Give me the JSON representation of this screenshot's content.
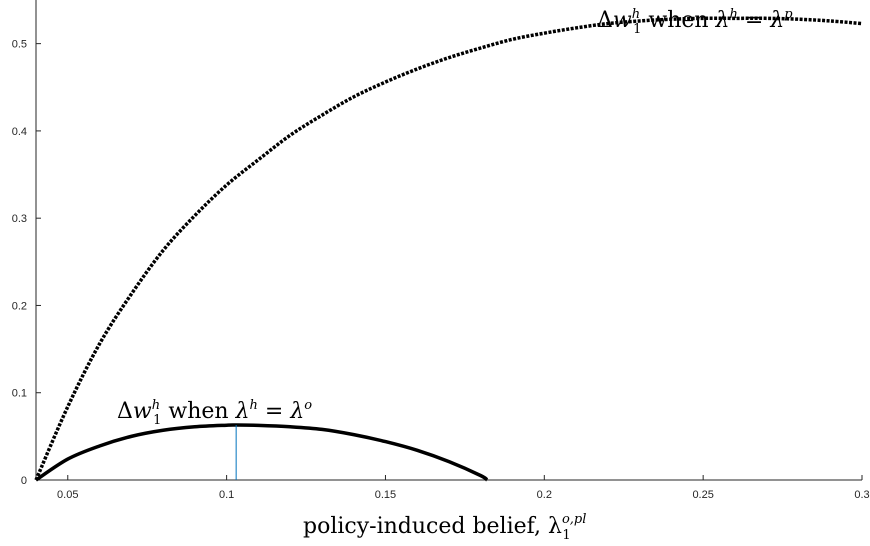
{
  "chart_data": {
    "type": "line",
    "xlabel": "policy-induced belief, λ",
    "xlabel_superscript": "o,pl",
    "xlabel_subscript": "1",
    "xlim": [
      0.04,
      0.3
    ],
    "ylim": [
      0,
      0.55
    ],
    "x_ticks": [
      0.05,
      0.1,
      0.15,
      0.2,
      0.25,
      0.3
    ],
    "x_tick_labels": [
      "0.05",
      "0.1",
      "0.15",
      "0.2",
      "0.25",
      "0.3"
    ],
    "y_ticks": [
      0,
      0.1,
      0.2,
      0.3,
      0.4,
      0.5
    ],
    "y_tick_labels": [
      "0",
      "0.1",
      "0.2",
      "0.3",
      "0.4",
      "0.5"
    ],
    "series": [
      {
        "name": "Δw1h when λh = λp",
        "style": "dashed",
        "color": "#000000",
        "x": [
          0.04,
          0.05,
          0.06,
          0.07,
          0.08,
          0.09,
          0.1,
          0.11,
          0.12,
          0.13,
          0.14,
          0.15,
          0.16,
          0.17,
          0.18,
          0.19,
          0.2,
          0.21,
          0.22,
          0.23,
          0.24,
          0.25,
          0.26,
          0.27,
          0.28,
          0.29,
          0.3
        ],
        "values": [
          0,
          0.084,
          0.156,
          0.213,
          0.263,
          0.303,
          0.338,
          0.367,
          0.395,
          0.418,
          0.439,
          0.456,
          0.471,
          0.484,
          0.495,
          0.505,
          0.512,
          0.518,
          0.523,
          0.526,
          0.528,
          0.529,
          0.529,
          0.529,
          0.528,
          0.526,
          0.523
        ]
      },
      {
        "name": "Δw1h when λh = λo",
        "style": "solid",
        "color": "#000000",
        "x": [
          0.04,
          0.05,
          0.06,
          0.07,
          0.08,
          0.09,
          0.1,
          0.103,
          0.11,
          0.12,
          0.13,
          0.14,
          0.15,
          0.16,
          0.17,
          0.18,
          0.182
        ],
        "values": [
          0,
          0.024,
          0.039,
          0.05,
          0.057,
          0.061,
          0.0628,
          0.063,
          0.0626,
          0.061,
          0.058,
          0.052,
          0.044,
          0.034,
          0.021,
          0.005,
          0
        ]
      }
    ],
    "marker_line": {
      "x": 0.103,
      "y_from": 0,
      "y_to": 0.063,
      "color": "#0072BD"
    },
    "annotations": [
      {
        "id": "top",
        "parts": {
          "delta": "Δ",
          "w": "w",
          "w_sup": "h",
          "w_sub": "1",
          "when": " when ",
          "lambda": "λ",
          "lambda_sup": "h",
          "eq": " = ",
          "lambda2": "λ",
          "lambda2_sup": "p"
        }
      },
      {
        "id": "bottom",
        "parts": {
          "delta": "Δ",
          "w": "w",
          "w_sup": "h",
          "w_sub": "1",
          "when": " when ",
          "lambda": "λ",
          "lambda_sup": "h",
          "eq": " = ",
          "lambda2": "λ",
          "lambda2_sup": "o"
        }
      }
    ]
  }
}
